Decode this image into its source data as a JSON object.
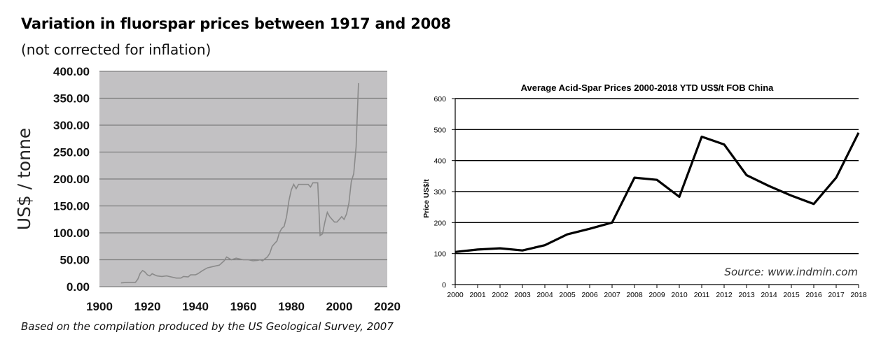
{
  "chart_data": [
    {
      "type": "line",
      "title": "Variation in fluorspar prices between 1917 and 2008",
      "subtitle": "(not corrected for inflation)",
      "xlabel": "",
      "ylabel": "US$ / tonne",
      "xlim": [
        1900,
        2020
      ],
      "ylim": [
        0,
        400
      ],
      "x_ticks": [
        "1900",
        "1920",
        "1940",
        "1960",
        "1980",
        "2000",
        "2020"
      ],
      "y_ticks": [
        "0.00",
        "50.00",
        "100.00",
        "150.00",
        "200.00",
        "250.00",
        "300.00",
        "350.00",
        "400.00"
      ],
      "grid": "horizontal",
      "plot_background": "#c2c1c3",
      "line_color": "#8a8a8a",
      "footnote": "Based on the compilation produced by the US Geological Survey, 2007",
      "series": [
        {
          "x": [
            1909,
            1912,
            1915,
            1916,
            1917,
            1918,
            1919,
            1920,
            1921,
            1922,
            1923,
            1924,
            1926,
            1928,
            1930,
            1932,
            1934,
            1935,
            1937,
            1938,
            1940,
            1941,
            1943,
            1945,
            1948,
            1950,
            1952,
            1953,
            1955,
            1957,
            1960,
            1962,
            1964,
            1966,
            1967,
            1968,
            1969,
            1970,
            1971,
            1972,
            1973,
            1974,
            1975,
            1976,
            1977,
            1978,
            1979,
            1980,
            1981,
            1982,
            1983,
            1984,
            1985,
            1987,
            1988,
            1989,
            1990,
            1991,
            1992,
            1993,
            1994,
            1995,
            1996,
            1997,
            1998,
            1999,
            2000,
            2001,
            2002,
            2003,
            2004,
            2005,
            2006,
            2007,
            2008
          ],
          "y": [
            7,
            8,
            8,
            14,
            25,
            30,
            27,
            22,
            20,
            24,
            22,
            20,
            19,
            20,
            18,
            16,
            16,
            19,
            18,
            22,
            22,
            24,
            30,
            35,
            38,
            40,
            48,
            55,
            50,
            53,
            50,
            50,
            48,
            49,
            50,
            48,
            52,
            55,
            62,
            75,
            80,
            85,
            100,
            108,
            112,
            130,
            160,
            180,
            190,
            182,
            190,
            190,
            190,
            190,
            185,
            193,
            193,
            193,
            95,
            98,
            120,
            138,
            130,
            125,
            120,
            120,
            125,
            130,
            125,
            135,
            155,
            195,
            210,
            260,
            378
          ]
        }
      ]
    },
    {
      "type": "line",
      "title": "Average Acid-Spar Prices 2000-2018 YTD US$/t FOB China",
      "xlabel": "",
      "ylabel": "Price US$/t",
      "ylim": [
        0,
        600
      ],
      "y_ticks": [
        "0",
        "100",
        "200",
        "300",
        "400",
        "500",
        "600"
      ],
      "grid": "horizontal",
      "line_color": "#000000",
      "annotation": "Source: www.indmin.com",
      "categories": [
        "2000",
        "2001",
        "2002",
        "2003",
        "2004",
        "2005",
        "2006",
        "2007",
        "2008",
        "2009",
        "2010",
        "2011",
        "2012",
        "2013",
        "2014",
        "2015",
        "2016",
        "2017",
        "2018"
      ],
      "series": [
        {
          "values": [
            105,
            113,
            117,
            110,
            127,
            162,
            180,
            200,
            345,
            338,
            283,
            477,
            452,
            353,
            318,
            287,
            260,
            345,
            490
          ]
        }
      ]
    }
  ]
}
